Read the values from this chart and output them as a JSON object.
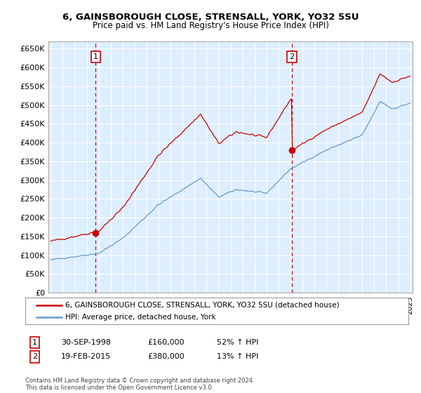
{
  "title_line1": "6, GAINSBOROUGH CLOSE, STRENSALL, YORK, YO32 5SU",
  "title_line2": "Price paid vs. HM Land Registry's House Price Index (HPI)",
  "legend_label_red": "6, GAINSBOROUGH CLOSE, STRENSALL, YORK, YO32 5SU (detached house)",
  "legend_label_blue": "HPI: Average price, detached house, York",
  "sale1_label": "1",
  "sale1_date": "30-SEP-1998",
  "sale1_price": "£160,000",
  "sale1_hpi": "52% ↑ HPI",
  "sale2_label": "2",
  "sale2_date": "19-FEB-2015",
  "sale2_price": "£380,000",
  "sale2_hpi": "13% ↑ HPI",
  "footer": "Contains HM Land Registry data © Crown copyright and database right 2024.\nThis data is licensed under the Open Government Licence v3.0.",
  "ylim": [
    0,
    670000
  ],
  "yticks": [
    0,
    50000,
    100000,
    150000,
    200000,
    250000,
    300000,
    350000,
    400000,
    450000,
    500000,
    550000,
    600000,
    650000
  ],
  "color_red": "#cc0000",
  "color_blue": "#6699cc",
  "bg_color": "#ffffff",
  "plot_bg_color": "#ddeeff",
  "grid_color": "#ffffff",
  "sale1_x": 1998.75,
  "sale2_x": 2015.12,
  "sale1_price_val": 160000,
  "sale2_price_val": 380000
}
